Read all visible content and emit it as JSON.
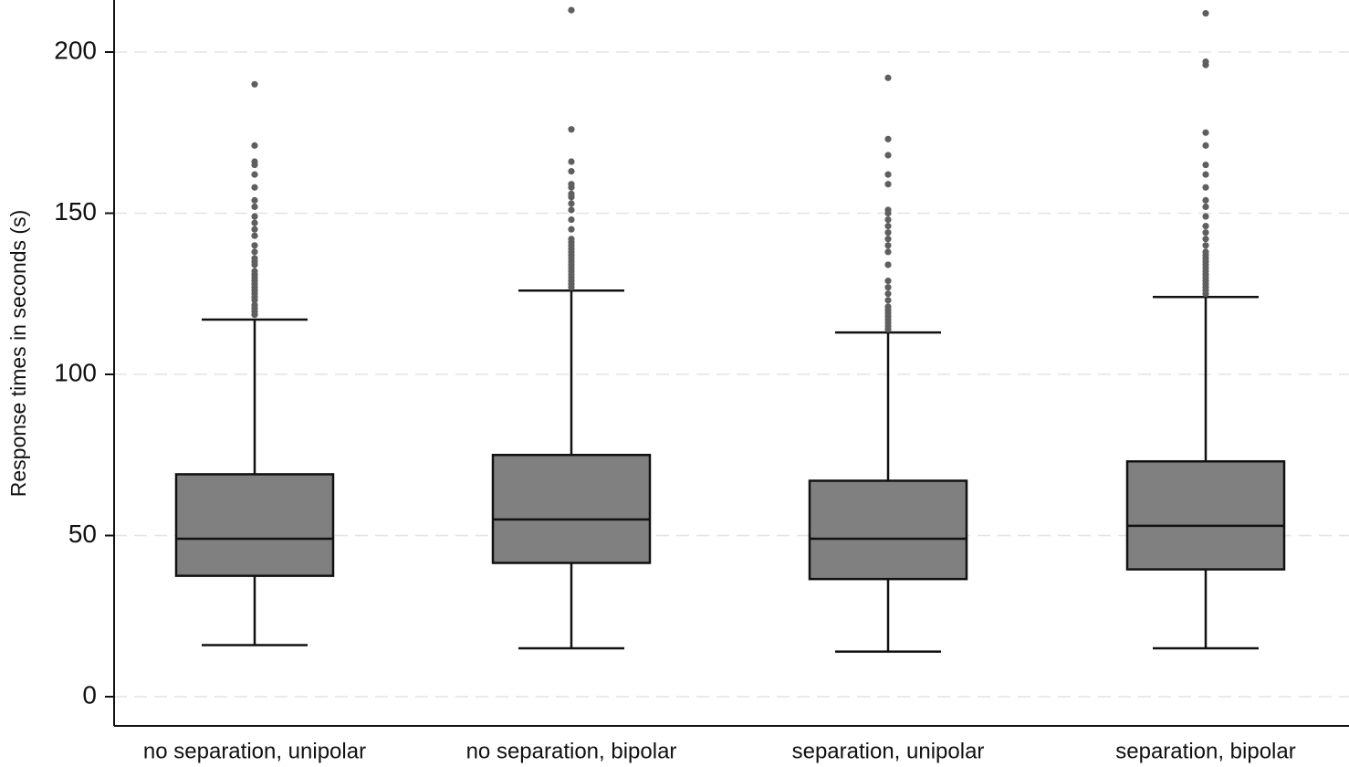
{
  "chart_data": {
    "type": "boxplot",
    "ylabel": "Response times in seconds (s)",
    "ylim": [
      -9,
      216
    ],
    "yticks": [
      0,
      50,
      100,
      150,
      200
    ],
    "grid": true,
    "colors": {
      "box_fill": "#808080",
      "stroke": "#111111",
      "outlier": "#5f5f5f",
      "grid": "#e3e3e3"
    },
    "categories": [
      "no separation, unipolar",
      "no separation, bipolar",
      "separation, unipolar",
      "separation, bipolar"
    ],
    "boxes": [
      {
        "min": 16,
        "q1": 37.5,
        "median": 49,
        "q3": 69,
        "max": 117,
        "outliers": [
          118.5,
          119.5,
          120.5,
          121.5,
          123,
          124,
          125,
          126,
          127,
          128,
          129,
          130,
          131,
          132,
          134,
          135,
          136,
          138,
          140,
          143,
          145,
          147,
          149,
          152,
          154,
          158,
          162,
          165,
          166,
          171,
          190
        ]
      },
      {
        "min": 15,
        "q1": 41.5,
        "median": 55,
        "q3": 75,
        "max": 126,
        "outliers": [
          127,
          128,
          129,
          130,
          131,
          132,
          133,
          134,
          135,
          136,
          137,
          138,
          139,
          140,
          141,
          142,
          145,
          148,
          151,
          153,
          155,
          156,
          158,
          159,
          163,
          166,
          176,
          213
        ]
      },
      {
        "min": 14,
        "q1": 36.5,
        "median": 49,
        "q3": 67,
        "max": 113,
        "outliers": [
          114,
          115,
          116,
          117,
          118,
          119,
          120,
          121,
          123,
          125,
          127,
          129,
          134,
          138,
          140,
          142,
          144,
          146,
          148,
          150,
          151,
          159,
          162,
          168,
          173,
          192
        ]
      },
      {
        "min": 15,
        "q1": 39.5,
        "median": 53,
        "q3": 73,
        "max": 124,
        "outliers": [
          125,
          126,
          127,
          128,
          129,
          130,
          131,
          132,
          133,
          134,
          135,
          136,
          137,
          138,
          140,
          142,
          144,
          146,
          149,
          152,
          154,
          158,
          162,
          165,
          171,
          175,
          196,
          197,
          212
        ]
      }
    ]
  }
}
